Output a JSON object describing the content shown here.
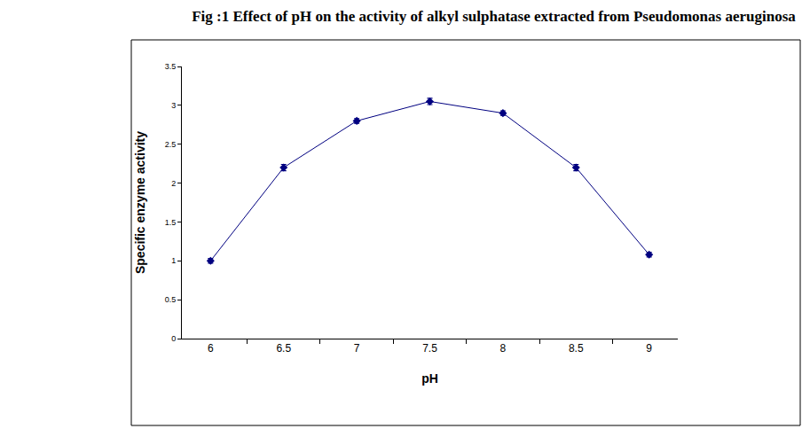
{
  "chart_data": {
    "type": "line",
    "title": "Fig :1 Effect of pH on the activity of alkyl sulphatase extracted from Pseudomonas aeruginosa",
    "x_label": "pH",
    "y_label": "Specific enzyme activity",
    "categories": [
      "6",
      "6.5",
      "7",
      "7.5",
      "8",
      "8.5",
      "9"
    ],
    "values": [
      1.0,
      2.2,
      2.8,
      3.05,
      2.9,
      2.2,
      1.08
    ],
    "errors": [
      0.03,
      0.04,
      0.03,
      0.04,
      0.03,
      0.04,
      0.03
    ],
    "color": "#000080",
    "marker": "diamond",
    "ylim": [
      0,
      3.5
    ],
    "yticks": [
      0,
      0.5,
      1,
      1.5,
      2,
      2.5,
      3,
      3.5
    ],
    "grid": false
  }
}
